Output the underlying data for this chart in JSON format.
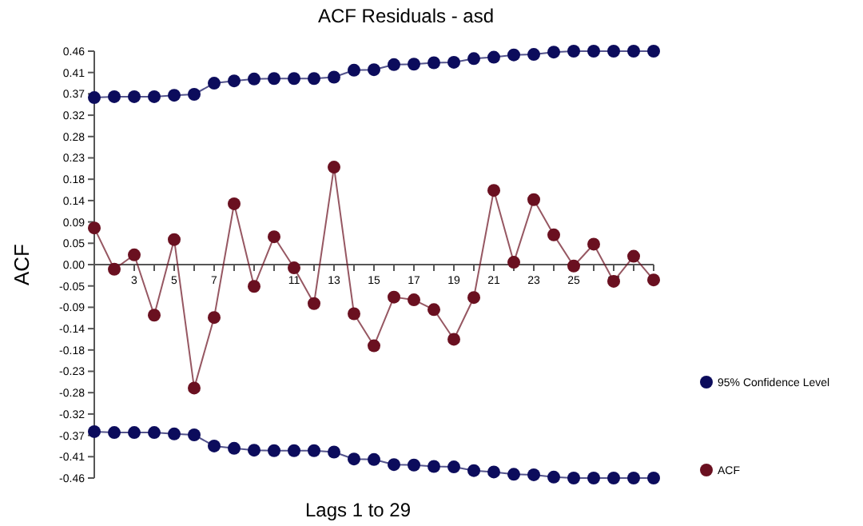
{
  "chart_data": {
    "type": "line",
    "title": "ACF Residuals - asd",
    "xlabel": "Lags  1 to 29",
    "ylabel": "ACF",
    "x": [
      1,
      2,
      3,
      4,
      5,
      6,
      7,
      8,
      9,
      10,
      11,
      12,
      13,
      14,
      15,
      16,
      17,
      18,
      19,
      20,
      21,
      22,
      23,
      24,
      25,
      26,
      27,
      28,
      29
    ],
    "series": [
      {
        "name": "95% Confidence Level",
        "color": "#0c0c5c",
        "values": [
          0.36,
          0.362,
          0.362,
          0.362,
          0.365,
          0.367,
          0.391,
          0.396,
          0.4,
          0.401,
          0.401,
          0.401,
          0.404,
          0.419,
          0.42,
          0.431,
          0.432,
          0.435,
          0.436,
          0.444,
          0.447,
          0.452,
          0.453,
          0.458,
          0.46,
          0.46,
          0.46,
          0.46,
          0.46
        ]
      },
      {
        "color": "#0c0c5c",
        "values": [
          -0.36,
          -0.362,
          -0.362,
          -0.362,
          -0.365,
          -0.367,
          -0.391,
          -0.396,
          -0.4,
          -0.401,
          -0.401,
          -0.401,
          -0.404,
          -0.419,
          -0.42,
          -0.431,
          -0.432,
          -0.435,
          -0.436,
          -0.444,
          -0.447,
          -0.452,
          -0.453,
          -0.458,
          -0.46,
          -0.46,
          -0.46,
          -0.46,
          -0.46
        ]
      },
      {
        "name": "ACF",
        "color": "#6a1020",
        "values": [
          0.079,
          -0.01,
          0.021,
          -0.109,
          0.054,
          -0.266,
          -0.114,
          0.131,
          -0.047,
          0.06,
          -0.007,
          -0.084,
          0.21,
          -0.106,
          -0.175,
          -0.07,
          -0.076,
          -0.097,
          -0.161,
          -0.071,
          0.16,
          0.005,
          0.14,
          0.064,
          -0.003,
          0.044,
          -0.036,
          0.018,
          -0.033
        ]
      }
    ],
    "xlim": [
      1,
      29
    ],
    "xticks": [
      {
        "value": 1,
        "label": null
      },
      {
        "value": 2,
        "label": null
      },
      3,
      {
        "value": 4,
        "label": null
      },
      5,
      {
        "value": 6,
        "label": null
      },
      7,
      {
        "value": 8,
        "label": null
      },
      {
        "value": 9,
        "label": null
      },
      {
        "value": 10,
        "label": null
      },
      11,
      {
        "value": 12,
        "label": null
      },
      13,
      {
        "value": 14,
        "label": null
      },
      15,
      {
        "value": 16,
        "label": null
      },
      17,
      {
        "value": 18,
        "label": null
      },
      19,
      {
        "value": 20,
        "label": null
      },
      21,
      {
        "value": 22,
        "label": null
      },
      23,
      {
        "value": 24,
        "label": null
      },
      25,
      {
        "value": 26,
        "label": null
      },
      27,
      {
        "value": 28,
        "label": null
      },
      {
        "value": 29,
        "label": null
      }
    ],
    "ylim": [
      -0.46,
      0.46
    ],
    "yticks": [
      {
        "value": -0.46,
        "label": "-0.46"
      },
      {
        "value": -0.414,
        "label": "-0.41"
      },
      {
        "value": -0.368,
        "label": "-0.37"
      },
      {
        "value": -0.322,
        "label": "-0.32"
      },
      {
        "value": -0.276,
        "label": "-0.28"
      },
      {
        "value": -0.23,
        "label": "-0.23"
      },
      {
        "value": -0.184,
        "label": "-0.18"
      },
      {
        "value": -0.138,
        "label": "-0.14"
      },
      {
        "value": -0.092,
        "label": "-0.09"
      },
      {
        "value": -0.046,
        "label": "-0.05"
      },
      {
        "value": 0,
        "label": "0.00"
      },
      {
        "value": 0.046,
        "label": "0.05"
      },
      {
        "value": 0.092,
        "label": "0.09"
      },
      {
        "value": 0.138,
        "label": "0.14"
      },
      {
        "value": 0.184,
        "label": "0.18"
      },
      {
        "value": 0.23,
        "label": "0.23"
      },
      {
        "value": 0.276,
        "label": "0.28"
      },
      {
        "value": 0.322,
        "label": "0.32"
      },
      {
        "value": 0.368,
        "label": "0.37"
      },
      {
        "value": 0.414,
        "label": "0.41"
      },
      {
        "value": 0.46,
        "label": "0.46"
      }
    ],
    "grid": false,
    "legend": "right",
    "marker": "circle",
    "line_style": "solid"
  }
}
